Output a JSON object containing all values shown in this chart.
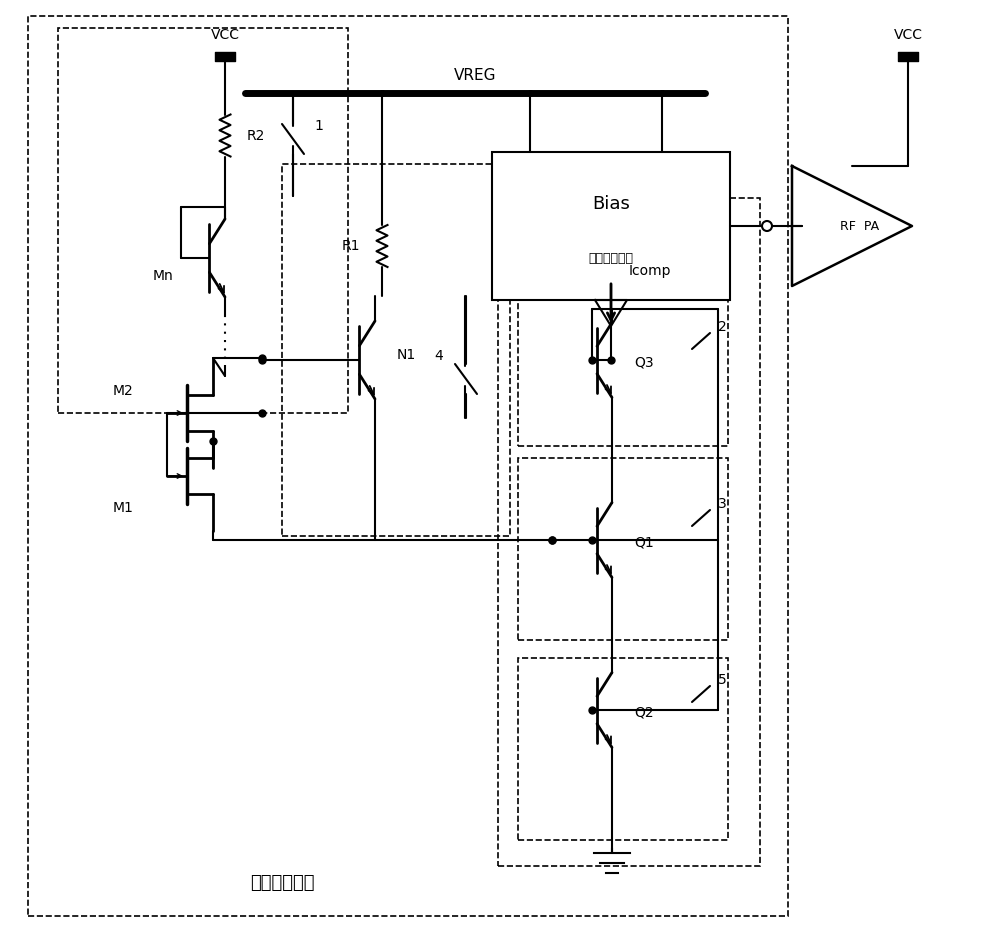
{
  "bg_color": "#ffffff",
  "line_color": "#000000",
  "fig_width": 10.0,
  "fig_height": 9.48,
  "labels": {
    "VCC_left": "VCC",
    "VCC_right": "VCC",
    "VREG": "VREG",
    "R2": "R2",
    "R1": "R1",
    "Mn": "Mn",
    "M2": "M2",
    "M1": "M1",
    "N1": "N1",
    "Q3": "Q3",
    "Q1": "Q1",
    "Q2": "Q2",
    "Bias": "Bias",
    "bias_sub": "（偏置电路）",
    "RF_PA": "RF  PA",
    "Icomp": "Icomp",
    "label1": "1",
    "label2": "2",
    "label3": "3",
    "label4": "4",
    "label5": "5",
    "bottom_label": "过压调节电路"
  }
}
